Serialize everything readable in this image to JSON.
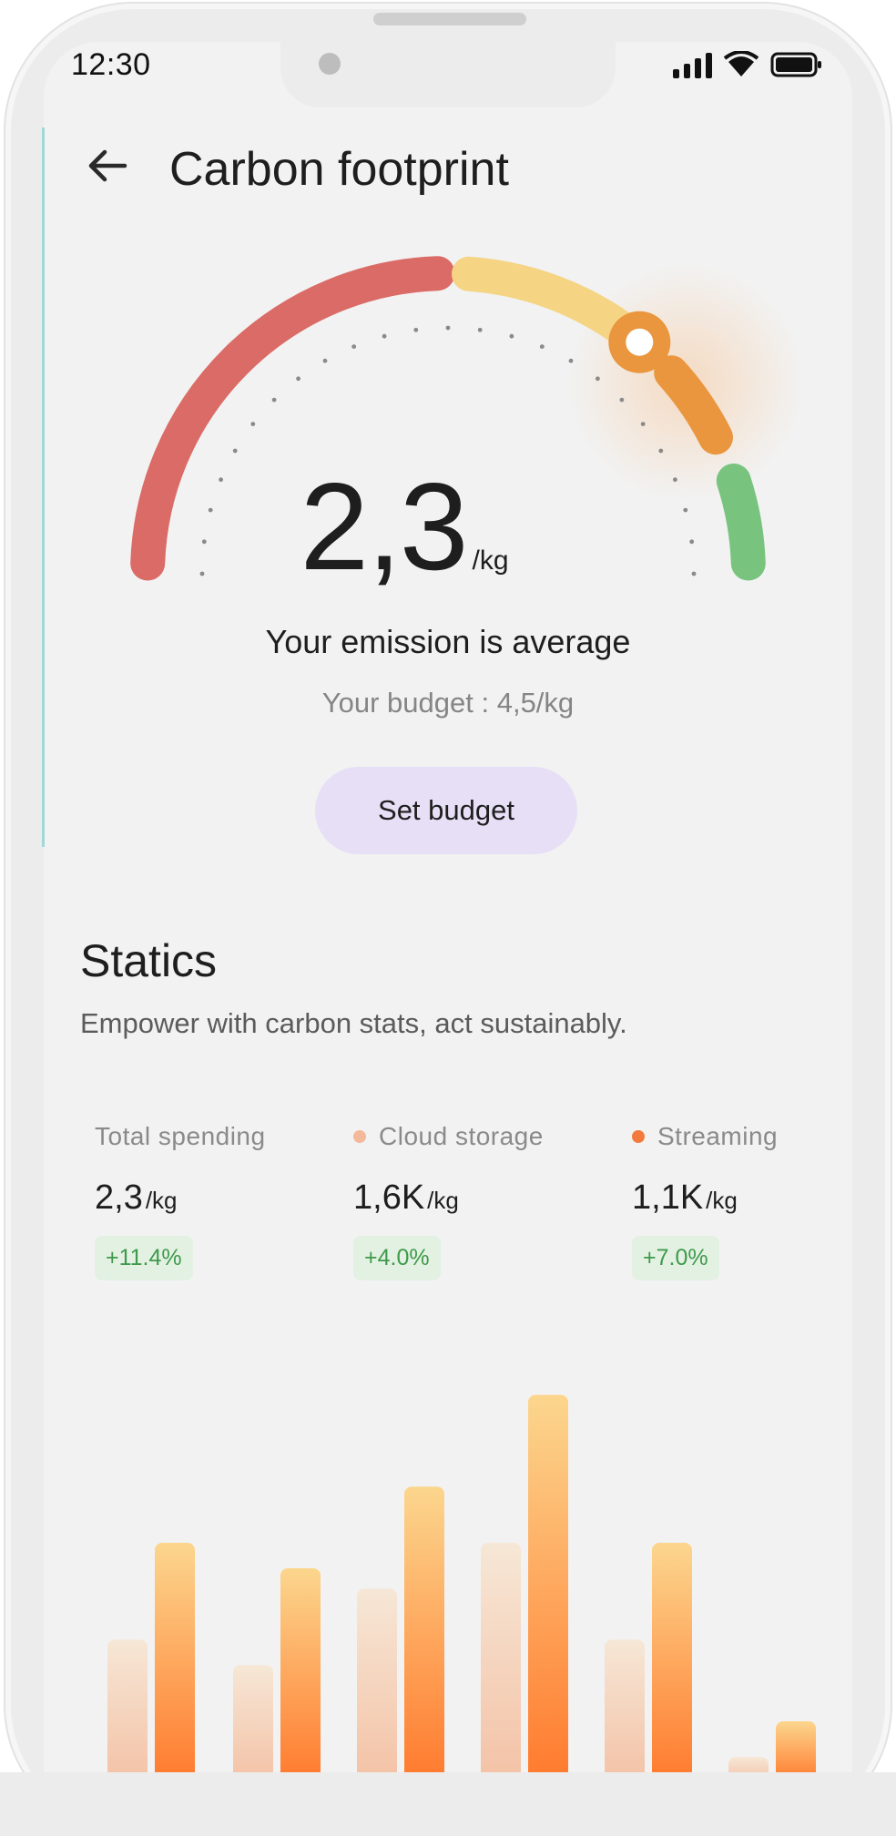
{
  "status_bar": {
    "time": "12:30"
  },
  "header": {
    "title": "Carbon footprint"
  },
  "gauge": {
    "value": "2,3",
    "unit": "/kg",
    "level": 0.72,
    "segment_colors": [
      "#da6b66",
      "#f5d484",
      "#ea963e",
      "#78c47e"
    ]
  },
  "emission_status": "Your emission is average",
  "budget_text": "Your budget : 4,5/kg",
  "set_budget_label": "Set budget",
  "statics": {
    "title": "Statics",
    "subtitle": "Empower with carbon stats, act sustainably.",
    "cards": [
      {
        "label": "Total spending",
        "value": "2,3",
        "unit": "/kg",
        "change": "+11.4%",
        "dot": ""
      },
      {
        "label": "Cloud storage",
        "value": "1,6K",
        "unit": "/kg",
        "change": "+4.0%",
        "dot": "#f4b89a"
      },
      {
        "label": "Streaming",
        "value": "1,1K",
        "unit": "/kg",
        "change": "+7.0%",
        "dot": "#f27a3c"
      }
    ]
  },
  "chart_data": {
    "type": "bar",
    "series": [
      {
        "values": [
          0.26,
          0.21,
          0.36,
          0.45,
          0.26,
          0.03
        ]
      },
      {
        "values": [
          0.45,
          0.4,
          0.56,
          0.74,
          0.45,
          0.1
        ]
      }
    ],
    "colors": {
      "light": [
        "#f6e1cb",
        "#f4c2a6"
      ],
      "strong": [
        "#fcd68e",
        "#ff7a2e"
      ]
    }
  }
}
